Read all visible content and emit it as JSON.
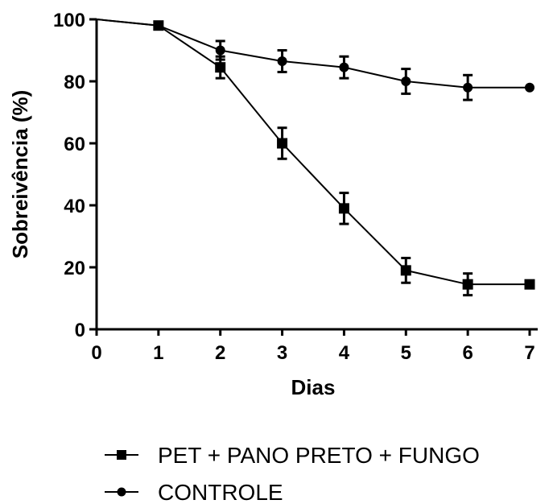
{
  "chart_data": {
    "type": "line",
    "xlabel": "Dias",
    "ylabel": "Sobreivência (%)",
    "xlim": [
      0,
      7
    ],
    "ylim": [
      0,
      100
    ],
    "xticks": [
      0,
      1,
      2,
      3,
      4,
      5,
      6,
      7
    ],
    "yticks": [
      0,
      20,
      40,
      60,
      80,
      100
    ],
    "grid": false,
    "legend_position": "bottom",
    "series": [
      {
        "name": "PET + PANO PRETO + FUNGO",
        "marker": "square",
        "x": [
          0,
          1,
          2,
          3,
          4,
          5,
          6,
          7
        ],
        "y": [
          100,
          98,
          84.5,
          60,
          39,
          19,
          14.5,
          14.5
        ],
        "error": [
          0,
          1,
          3.5,
          5,
          5,
          4,
          3.5,
          0
        ]
      },
      {
        "name": "CONTROLE",
        "marker": "circle",
        "x": [
          0,
          1,
          2,
          3,
          4,
          5,
          6,
          7
        ],
        "y": [
          100,
          98,
          90,
          86.5,
          84.5,
          80,
          78,
          78
        ],
        "error": [
          0,
          1,
          3,
          3.5,
          3.5,
          4,
          4,
          0
        ]
      }
    ]
  }
}
